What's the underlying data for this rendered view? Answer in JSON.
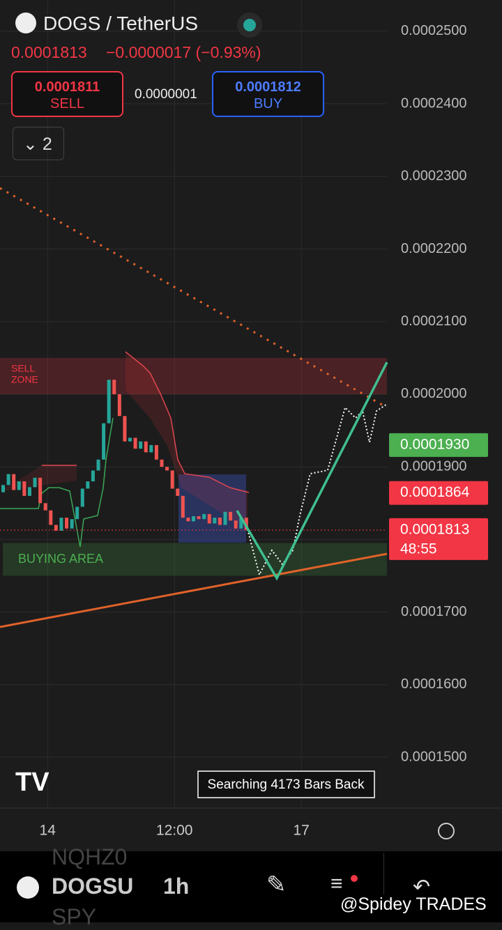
{
  "header": {
    "symbol": "DOGS / TetherUS",
    "last": "0.0001813",
    "change": "−0.0000017 (−0.93%)",
    "sell_price": "0.0001811",
    "sell": "SELL",
    "spread": "0.0000001",
    "buy_price": "0.0001812",
    "buy": "BUY",
    "collapse_count": "2"
  },
  "chart_data": {
    "type": "candlestick",
    "x": [
      0.3,
      0.8,
      1.3,
      1.8,
      2.3,
      2.8,
      3.3,
      3.8,
      4.3,
      4.8,
      5.3,
      5.8,
      6.3,
      6.8,
      7.3,
      7.8,
      8.3,
      8.8,
      9.3,
      9.8,
      10.3,
      10.8,
      11.3,
      11.8,
      12.3,
      12.8,
      13.3,
      13.8,
      14.3,
      14.8,
      15.3,
      15.8,
      16.3,
      16.8,
      17.3,
      17.8,
      18.3,
      18.8,
      19.3,
      19.8,
      20.3,
      20.8,
      21.3,
      21.8,
      22.3,
      22.8,
      23.3
    ],
    "open": [
      0.0001865,
      0.0001875,
      0.000189,
      0.0001868,
      0.000188,
      0.000186,
      0.0001872,
      0.0001885,
      0.000185,
      0.000184,
      0.000182,
      0.0001812,
      0.000183,
      0.0001815,
      0.0001828,
      0.0001845,
      0.000187,
      0.000188,
      0.0001895,
      0.000191,
      0.000196,
      0.000202,
      0.0002,
      0.000197,
      0.0001935,
      0.000194,
      0.0001925,
      0.0001935,
      0.000192,
      0.000193,
      0.000191,
      0.00019,
      0.0001895,
      0.000187,
      0.000186,
      0.000183,
      0.0001825,
      0.0001832,
      0.0001828,
      0.0001835,
      0.0001822,
      0.000183,
      0.000182,
      0.0001838,
      0.0001826,
      0.0001815,
      0.000183
    ],
    "close": [
      0.0001875,
      0.000189,
      0.0001868,
      0.000188,
      0.000186,
      0.0001872,
      0.0001885,
      0.000185,
      0.000184,
      0.000182,
      0.0001812,
      0.000183,
      0.0001815,
      0.0001828,
      0.0001845,
      0.000187,
      0.000188,
      0.0001895,
      0.000191,
      0.000196,
      0.000202,
      0.0002,
      0.000197,
      0.0001935,
      0.000194,
      0.0001925,
      0.0001935,
      0.000192,
      0.000193,
      0.000191,
      0.00019,
      0.0001895,
      0.000187,
      0.000186,
      0.000183,
      0.0001825,
      0.0001832,
      0.0001828,
      0.0001835,
      0.0001822,
      0.000183,
      0.000182,
      0.0001838,
      0.0001826,
      0.0001815,
      0.000183,
      0.0001813
    ],
    "up_color": "#26a69a",
    "down_color": "#ef5350",
    "xlim": [
      0,
      36.6
    ],
    "xticks": [
      {
        "value": 4.5,
        "label": "14"
      },
      {
        "value": 16.5,
        "label": "12:00"
      },
      {
        "value": 28.5,
        "label": "17"
      }
    ],
    "ylim": [
      0.000143,
      0.0002543
    ],
    "yticks": [
      {
        "value": 0.00015,
        "label": "0.0001500"
      },
      {
        "value": 0.00016,
        "label": "0.0001600"
      },
      {
        "value": 0.00017,
        "label": "0.0001700"
      },
      {
        "value": 0.00018,
        "label": "0.0001800"
      },
      {
        "value": 0.00019,
        "label": "0.0001900"
      },
      {
        "value": 0.0002,
        "label": "0.0002000"
      },
      {
        "value": 0.00021,
        "label": "0.0002100"
      },
      {
        "value": 0.00022,
        "label": "0.0002200"
      },
      {
        "value": 0.00023,
        "label": "0.0002300"
      },
      {
        "value": 0.00024,
        "label": "0.0002400"
      },
      {
        "value": 0.00025,
        "label": "0.0002500"
      }
    ],
    "grid": true,
    "zones": [
      {
        "lines": [
          "SELL",
          "ZONE"
        ],
        "range": [
          0.0002,
          0.000205
        ],
        "color": "#f23645"
      },
      {
        "lines": [
          "BUYING AREA"
        ],
        "range": [
          0.000175,
          0.0001795
        ],
        "color": "#4caf50"
      }
    ],
    "price_labels": [
      {
        "value": 0.000193,
        "label": "0.0001930",
        "color": "#4caf50"
      },
      {
        "value": 0.0001864,
        "label": "0.0001864",
        "color": "#f23645"
      },
      {
        "value": 0.0001813,
        "label": "0.0001813",
        "color": "#f23645",
        "countdown": "48:55"
      }
    ],
    "status": "Searching 4173 Bars Back"
  },
  "toolbar": {
    "symbol": "DOGSU",
    "interval": "1h",
    "ghost_top": "NQHZ0",
    "ghost_bottom": "SPY",
    "watermark": "@Spidey TRADES"
  }
}
